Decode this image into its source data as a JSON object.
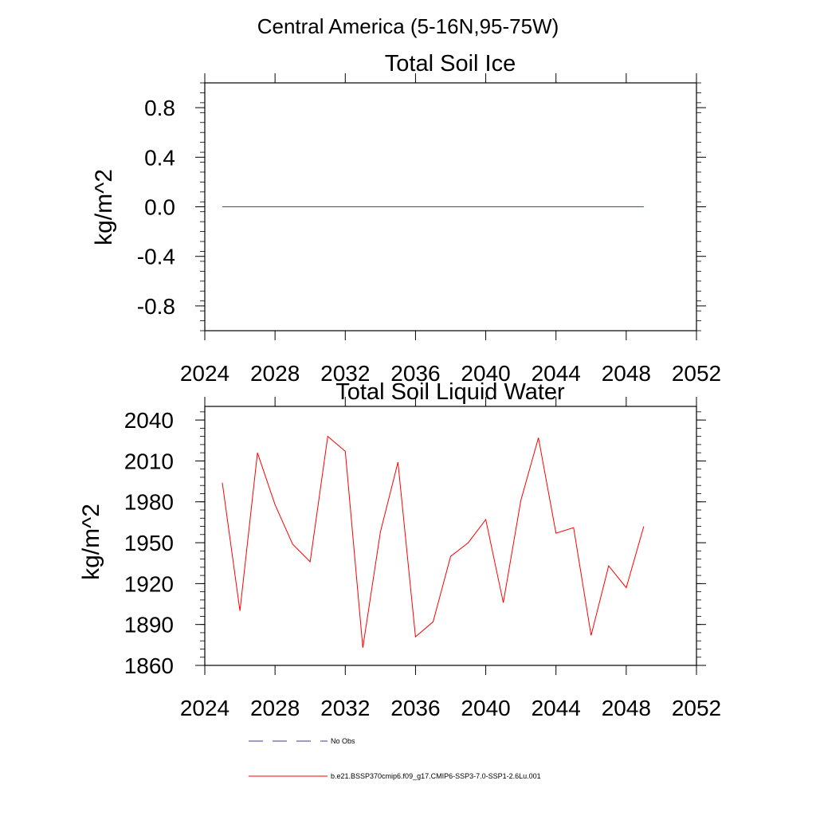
{
  "figure_title": "Central America (5-16N,95-75W)",
  "chart_data": [
    {
      "type": "line",
      "title": "Total Soil Ice",
      "ylabel": "kg/m^2",
      "xlabel": "",
      "xlim": [
        2024,
        2052
      ],
      "ylim": [
        -1.0,
        1.0
      ],
      "xticks": [
        "2024",
        "2028",
        "2032",
        "2036",
        "2040",
        "2044",
        "2048",
        "2052"
      ],
      "yticks": [
        "0.8",
        "0.4",
        "0.0",
        "-0.4",
        "-0.8"
      ],
      "grid": false,
      "series": [
        {
          "color": "#ff0000",
          "x": [
            2025,
            2026,
            2027,
            2028,
            2029,
            2030,
            2031,
            2032,
            2033,
            2034,
            2035,
            2036,
            2037,
            2038,
            2039,
            2040,
            2041,
            2042,
            2043,
            2044,
            2045,
            2046,
            2047,
            2048,
            2049
          ],
          "y": [
            0,
            0,
            0,
            0,
            0,
            0,
            0,
            0,
            0,
            0,
            0,
            0,
            0,
            0,
            0,
            0,
            0,
            0,
            0,
            0,
            0,
            0,
            0,
            0,
            0
          ]
        }
      ]
    },
    {
      "type": "line",
      "title": "Total Soil Liquid Water",
      "ylabel": "kg/m^2",
      "xlabel": "",
      "xlim": [
        2024,
        2052
      ],
      "ylim": [
        1860,
        2050
      ],
      "xticks": [
        "2024",
        "2028",
        "2032",
        "2036",
        "2040",
        "2044",
        "2048",
        "2052"
      ],
      "yticks": [
        "2040",
        "2010",
        "1980",
        "1950",
        "1920",
        "1890",
        "1860"
      ],
      "grid": false,
      "series": [
        {
          "color": "#ff0000",
          "x": [
            2025,
            2026,
            2027,
            2028,
            2029,
            2030,
            2031,
            2032,
            2033,
            2034,
            2035,
            2036,
            2037,
            2038,
            2039,
            2040,
            2041,
            2042,
            2043,
            2044,
            2045,
            2046,
            2047,
            2048,
            2049
          ],
          "y": [
            1994,
            1900,
            2016,
            1978,
            1949,
            1936,
            2028,
            2017,
            1873,
            1958,
            2009,
            1881,
            1892,
            1940,
            1950,
            1967,
            1906,
            1981,
            2027,
            1957,
            1961,
            1882,
            1933,
            1917,
            1962
          ]
        }
      ]
    }
  ],
  "legend": {
    "position": "bottom",
    "entries": [
      {
        "label": "No Obs",
        "color": "#3b3b9a",
        "style": "dashed"
      },
      {
        "label": "b.e21.BSSP370cmip6.f09_g17.CMIP6-SSP3-7.0-SSP1-2.6Lu.001",
        "color": "#ff0000",
        "style": "solid"
      }
    ]
  }
}
